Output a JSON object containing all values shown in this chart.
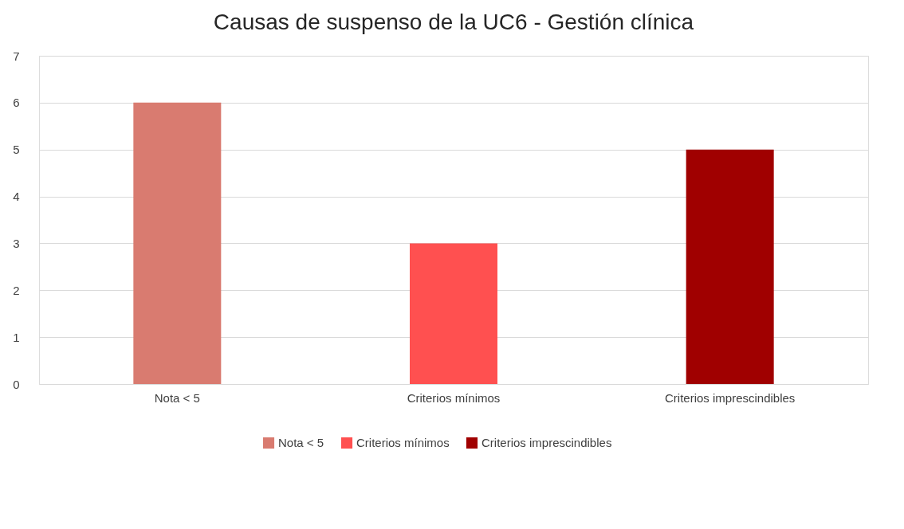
{
  "chart_data": {
    "type": "bar",
    "title": "Causas de suspenso de la UC6 - Gestión clínica",
    "categories": [
      "Nota < 5",
      "Criterios mínimos",
      "Criterios imprescindibles"
    ],
    "series": [
      {
        "name": "Nota < 5",
        "color": "#d97b70",
        "values": [
          6,
          null,
          null
        ]
      },
      {
        "name": "Criterios mínimos",
        "color": "#ff5050",
        "values": [
          null,
          3,
          null
        ]
      },
      {
        "name": "Criterios imprescindibles",
        "color": "#a00000",
        "values": [
          null,
          null,
          5
        ]
      }
    ],
    "ylim": [
      0,
      7
    ],
    "yticks": [
      0,
      1,
      2,
      3,
      4,
      5,
      6,
      7
    ],
    "grid": "y",
    "legend": "bottom"
  }
}
